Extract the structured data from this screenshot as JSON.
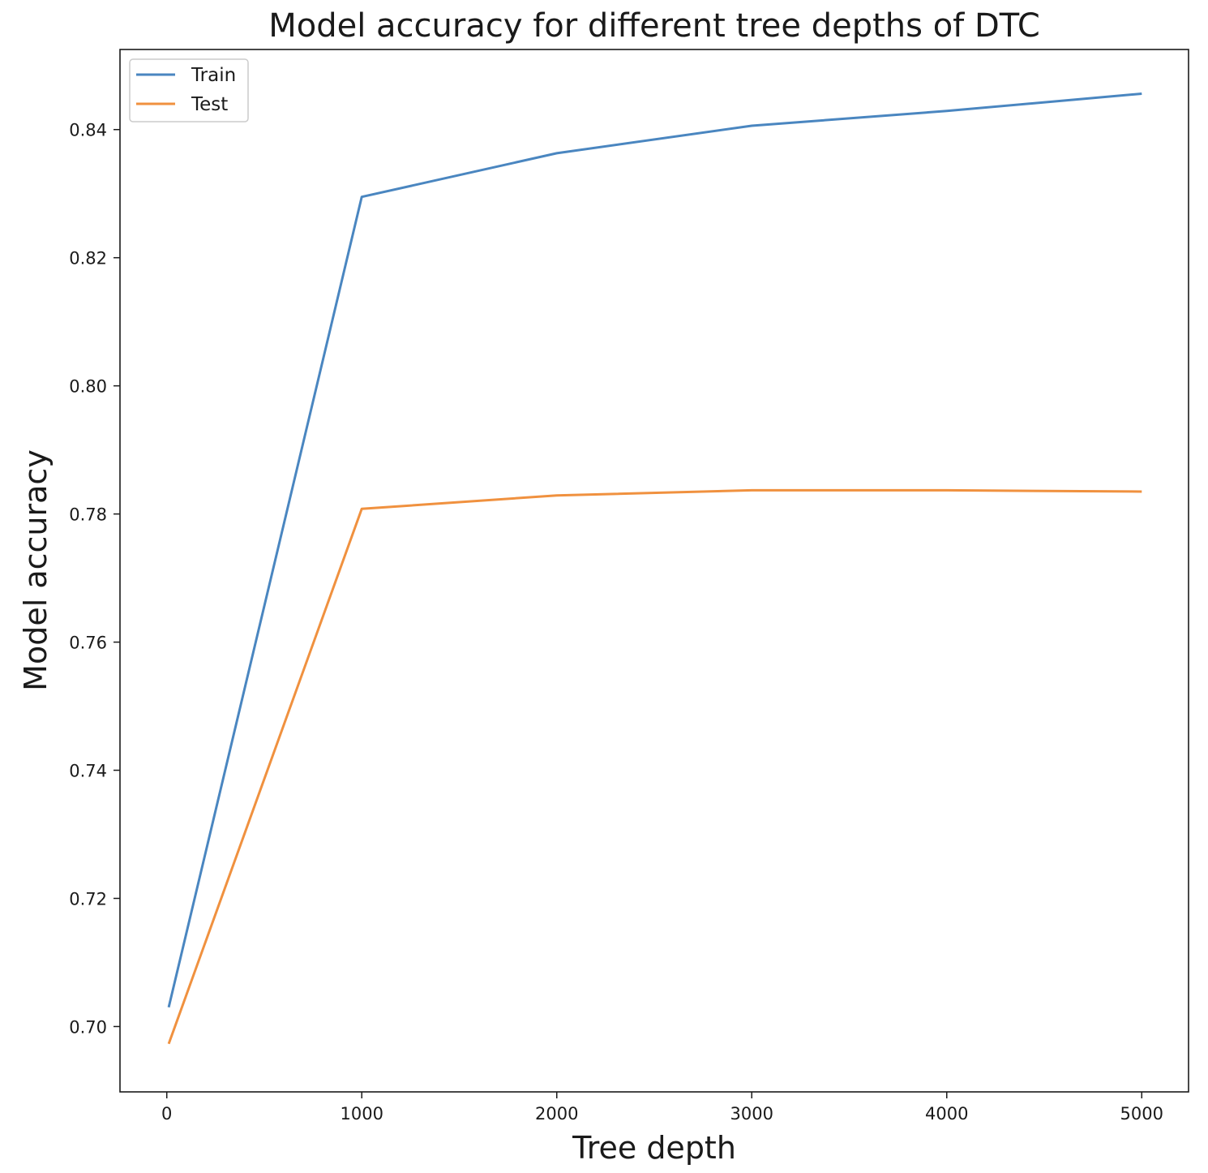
{
  "chart_data": {
    "type": "line",
    "title": "Model accuracy for different tree depths of DTC",
    "xlabel": "Tree depth",
    "ylabel": "Model accuracy",
    "x": [
      10,
      1000,
      2000,
      3000,
      4000,
      5000
    ],
    "series": [
      {
        "name": "Train",
        "color": "#4a86c0",
        "values": [
          0.703,
          0.8295,
          0.8363,
          0.8406,
          0.8429,
          0.8456
        ]
      },
      {
        "name": "Test",
        "color": "#f0913f",
        "values": [
          0.6973,
          0.7808,
          0.7829,
          0.7837,
          0.7837,
          0.7835
        ]
      }
    ],
    "xlim": [
      -240,
      5240
    ],
    "ylim": [
      0.6898,
      0.8525
    ],
    "xticks": [
      0,
      1000,
      2000,
      3000,
      4000,
      5000
    ],
    "xtick_labels": [
      "0",
      "1000",
      "2000",
      "3000",
      "4000",
      "5000"
    ],
    "yticks": [
      0.7,
      0.72,
      0.74,
      0.76,
      0.78,
      0.8,
      0.82,
      0.84
    ],
    "ytick_labels": [
      "0.70",
      "0.72",
      "0.74",
      "0.76",
      "0.78",
      "0.80",
      "0.82",
      "0.84"
    ],
    "grid": false,
    "legend_position": "top-left"
  }
}
